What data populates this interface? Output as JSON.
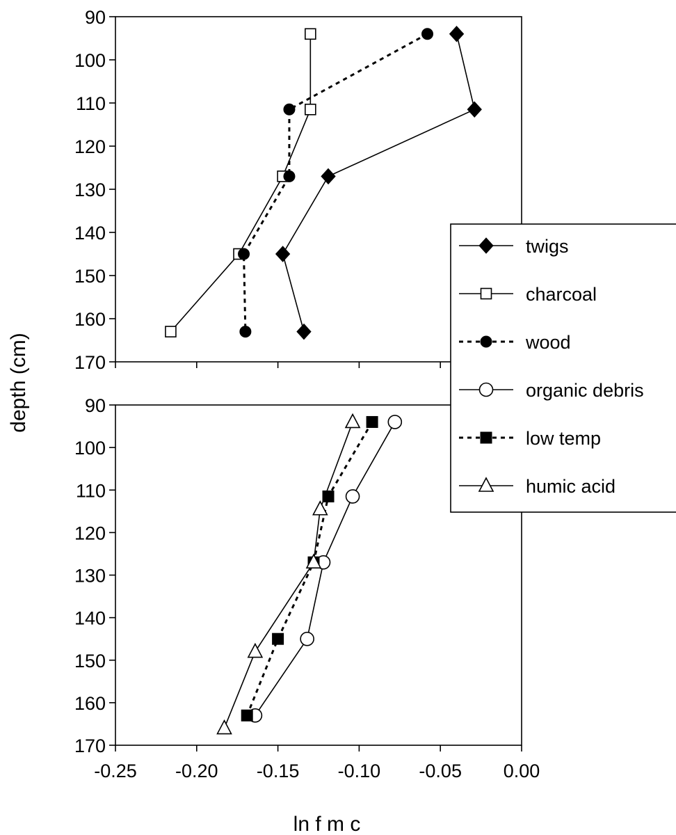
{
  "ylabel": "depth  (cm)",
  "xlabel": "ln  f m c",
  "legend_placement": "right",
  "chart_data": [
    {
      "type": "line",
      "panel": "top",
      "xlim": [
        -0.25,
        0.0
      ],
      "ylim": [
        90,
        170
      ],
      "y_reversed": true,
      "yticks": [
        "90",
        "100",
        "110",
        "120",
        "130",
        "140",
        "150",
        "160",
        "170"
      ],
      "series": [
        {
          "name": "twigs",
          "marker": "filled-diamond",
          "line": "solid",
          "x": [
            -0.04,
            -0.029,
            -0.119,
            -0.147,
            -0.134
          ],
          "y": [
            94,
            111.5,
            127,
            145,
            163
          ]
        },
        {
          "name": "charcoal",
          "marker": "open-square",
          "line": "solid",
          "x": [
            -0.13,
            -0.13,
            -0.147,
            -0.174,
            -0.216
          ],
          "y": [
            94,
            111.5,
            127,
            145,
            163
          ]
        },
        {
          "name": "wood",
          "marker": "filled-circle",
          "line": "dotted",
          "x": [
            -0.058,
            -0.143,
            -0.143,
            -0.171,
            -0.17
          ],
          "y": [
            94,
            111.5,
            127,
            145,
            163
          ]
        }
      ]
    },
    {
      "type": "line",
      "panel": "bottom",
      "xlim": [
        -0.25,
        0.0
      ],
      "ylim": [
        90,
        170
      ],
      "y_reversed": true,
      "yticks": [
        "90",
        "100",
        "110",
        "120",
        "130",
        "140",
        "150",
        "160",
        "170"
      ],
      "xticks": [
        "-0.25",
        "-0.20",
        "-0.15",
        "-0.10",
        "-0.05",
        "0.00"
      ],
      "series": [
        {
          "name": "organic debris",
          "marker": "open-circle",
          "line": "solid",
          "x": [
            -0.078,
            -0.104,
            -0.122,
            -0.132,
            -0.164
          ],
          "y": [
            94,
            111.5,
            127,
            145,
            163
          ]
        },
        {
          "name": "low temp",
          "marker": "filled-square",
          "line": "dotted",
          "x": [
            -0.092,
            -0.119,
            -0.128,
            -0.15,
            -0.169
          ],
          "y": [
            94,
            111.5,
            127,
            145,
            163
          ]
        },
        {
          "name": "humic acid",
          "marker": "open-triangle",
          "line": "solid",
          "x": [
            -0.104,
            -0.124,
            -0.128,
            -0.164,
            -0.183
          ],
          "y": [
            94,
            114.5,
            127,
            148,
            166
          ]
        }
      ]
    }
  ]
}
